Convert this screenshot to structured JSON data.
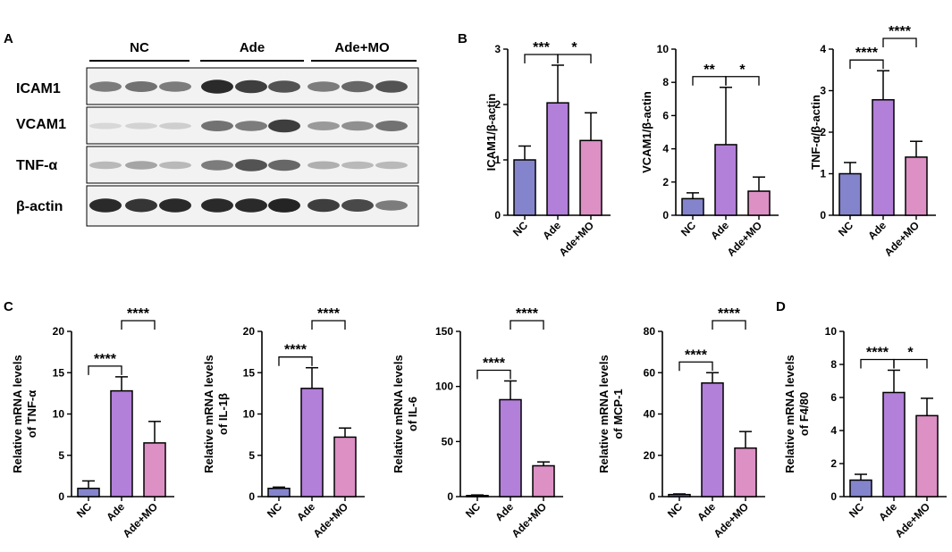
{
  "colors": {
    "NC": "#8484cc",
    "Ade": "#b27fd9",
    "Ade+MO": "#dc90c4",
    "stroke": "#000000"
  },
  "blot": {
    "panel_letter": "A",
    "groups": [
      "NC",
      "Ade",
      "Ade+MO"
    ],
    "proteins": [
      {
        "name": "ICAM1",
        "intensity": [
          0.55,
          0.6,
          0.55,
          0.95,
          0.85,
          0.75,
          0.55,
          0.65,
          0.75
        ]
      },
      {
        "name": "VCAM1",
        "intensity": [
          0.1,
          0.12,
          0.15,
          0.6,
          0.55,
          0.85,
          0.4,
          0.45,
          0.6
        ]
      },
      {
        "name": "TNF-α",
        "intensity": [
          0.25,
          0.35,
          0.25,
          0.55,
          0.75,
          0.65,
          0.3,
          0.25,
          0.25
        ]
      },
      {
        "name": "β-actin",
        "intensity": [
          0.95,
          0.9,
          0.95,
          0.95,
          0.95,
          0.98,
          0.85,
          0.8,
          0.55
        ]
      }
    ]
  },
  "panel_letters": {
    "B": "B",
    "C": "C",
    "D": "D"
  },
  "chart_data": [
    {
      "type": "bar",
      "panel": "B",
      "ylabel": "ICAM1/β-actin",
      "categories": [
        "NC",
        "Ade",
        "Ade+MO"
      ],
      "values": [
        1.0,
        2.03,
        1.35
      ],
      "errors": [
        0.25,
        0.68,
        0.5
      ],
      "ylim": [
        0,
        3
      ],
      "yticks": [
        0,
        1,
        2,
        3
      ],
      "significance": [
        {
          "from": 0,
          "to": 1,
          "label": "***"
        },
        {
          "from": 1,
          "to": 2,
          "label": "*"
        }
      ]
    },
    {
      "type": "bar",
      "panel": "B",
      "ylabel": "VCAM1/β-actin",
      "categories": [
        "NC",
        "Ade",
        "Ade+MO"
      ],
      "values": [
        1.0,
        4.25,
        1.45
      ],
      "errors": [
        0.35,
        3.45,
        0.85
      ],
      "ylim": [
        0,
        10
      ],
      "yticks": [
        0,
        2,
        4,
        6,
        8,
        10
      ],
      "significance": [
        {
          "from": 0,
          "to": 1,
          "label": "**"
        },
        {
          "from": 1,
          "to": 2,
          "label": "*"
        }
      ]
    },
    {
      "type": "bar",
      "panel": "B",
      "ylabel": "TNF-α/β-actin",
      "categories": [
        "NC",
        "Ade",
        "Ade+MO"
      ],
      "values": [
        1.0,
        2.78,
        1.4
      ],
      "errors": [
        0.27,
        0.7,
        0.38
      ],
      "ylim": [
        0,
        4
      ],
      "yticks": [
        0,
        1,
        2,
        3,
        4
      ],
      "significance": [
        {
          "from": 0,
          "to": 1,
          "label": "****"
        },
        {
          "from": 1,
          "to": 2,
          "label": "****"
        }
      ]
    },
    {
      "type": "bar",
      "panel": "C",
      "ylabel": [
        "Relative mRNA levels",
        "of TNF-α"
      ],
      "categories": [
        "NC",
        "Ade",
        "Ade+MO"
      ],
      "values": [
        1.0,
        12.8,
        6.5
      ],
      "errors": [
        0.9,
        1.7,
        2.6
      ],
      "ylim": [
        0,
        20
      ],
      "yticks": [
        0,
        5,
        10,
        15,
        20
      ],
      "significance": [
        {
          "from": 0,
          "to": 1,
          "label": "****"
        },
        {
          "from": 1,
          "to": 2,
          "label": "****"
        }
      ]
    },
    {
      "type": "bar",
      "panel": "C",
      "ylabel": [
        "Relative mRNA levels",
        "of IL-1β"
      ],
      "categories": [
        "NC",
        "Ade",
        "Ade+MO"
      ],
      "values": [
        1.0,
        13.1,
        7.2
      ],
      "errors": [
        0.15,
        2.5,
        1.1
      ],
      "ylim": [
        0,
        20
      ],
      "yticks": [
        0,
        5,
        10,
        15,
        20
      ],
      "significance": [
        {
          "from": 0,
          "to": 1,
          "label": "****"
        },
        {
          "from": 1,
          "to": 2,
          "label": "****"
        }
      ]
    },
    {
      "type": "bar",
      "panel": "C",
      "ylabel": [
        "Relative mRNA levels",
        "of IL-6"
      ],
      "categories": [
        "NC",
        "Ade",
        "Ade+MO"
      ],
      "values": [
        1.0,
        88.0,
        28.0
      ],
      "errors": [
        0.5,
        17.0,
        3.5
      ],
      "ylim": [
        0,
        150
      ],
      "yticks": [
        0,
        50,
        100,
        150
      ],
      "significance": [
        {
          "from": 0,
          "to": 1,
          "label": "****"
        },
        {
          "from": 1,
          "to": 2,
          "label": "****"
        }
      ]
    },
    {
      "type": "bar",
      "panel": "C",
      "ylabel": [
        "Relative mRNA levels",
        "of MCP-1"
      ],
      "categories": [
        "NC",
        "Ade",
        "Ade+MO"
      ],
      "values": [
        1.0,
        55.0,
        23.5
      ],
      "errors": [
        0.3,
        5.0,
        8.0
      ],
      "ylim": [
        0,
        80
      ],
      "yticks": [
        0,
        20,
        40,
        60,
        80
      ],
      "significance": [
        {
          "from": 0,
          "to": 1,
          "label": "****"
        },
        {
          "from": 1,
          "to": 2,
          "label": "****"
        }
      ]
    },
    {
      "type": "bar",
      "panel": "D",
      "ylabel": [
        "Relative mRNA levels",
        "of F4/80"
      ],
      "categories": [
        "NC",
        "Ade",
        "Ade+MO"
      ],
      "values": [
        1.0,
        6.3,
        4.9
      ],
      "errors": [
        0.35,
        1.35,
        1.05
      ],
      "ylim": [
        0,
        10
      ],
      "yticks": [
        0,
        2,
        4,
        6,
        8,
        10
      ],
      "significance": [
        {
          "from": 0,
          "to": 1,
          "label": "****"
        },
        {
          "from": 1,
          "to": 2,
          "label": "*"
        }
      ]
    }
  ]
}
